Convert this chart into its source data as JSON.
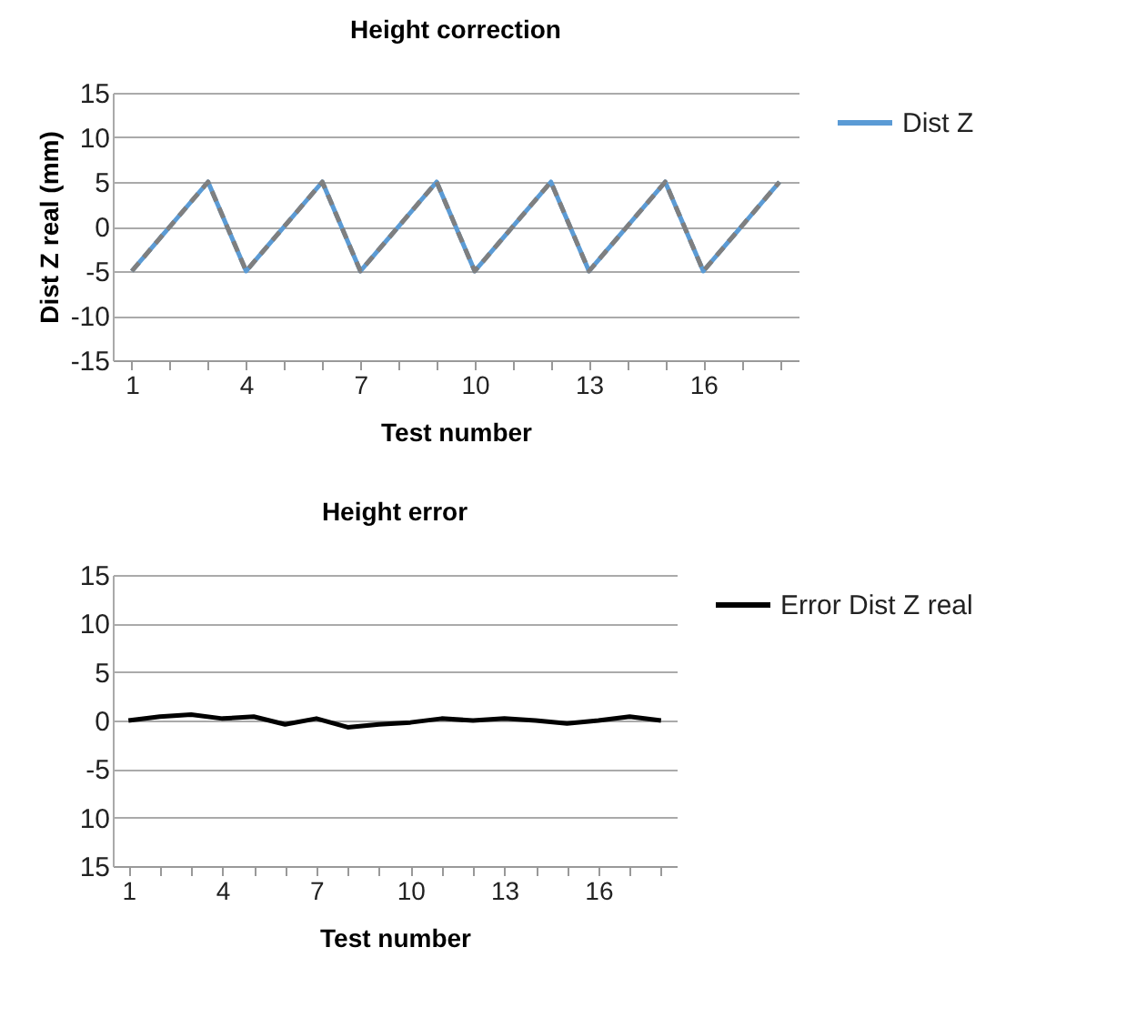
{
  "chart_data": [
    {
      "type": "line",
      "title": "Height correction",
      "xlabel": "Test number",
      "ylabel": "Dist Z real (mm)",
      "categories": [
        "1",
        null,
        null,
        "4",
        null,
        null,
        "7",
        null,
        null,
        "10",
        null,
        null,
        "13",
        null,
        null,
        "16",
        null,
        null
      ],
      "series": [
        {
          "name": "Dist Z",
          "color": "#5b9bd5",
          "values": [
            -5,
            0,
            5,
            -5,
            0,
            5,
            -5,
            0,
            5,
            -5,
            0,
            5,
            -5,
            0,
            5,
            -5,
            0,
            5
          ]
        },
        {
          "color": "#7f7f7f",
          "line_style": "dashed",
          "values": [
            -5,
            0,
            5,
            -5,
            0,
            5,
            -5,
            0,
            5,
            -5,
            0,
            5,
            -5,
            0,
            5,
            -5,
            0,
            5
          ]
        }
      ],
      "ylim": [
        -15,
        15
      ],
      "yticks": [
        -15,
        -10,
        -5,
        0,
        5,
        10,
        15
      ],
      "grid": "y",
      "legend": "right"
    },
    {
      "type": "line",
      "title": "Height error",
      "xlabel": "Test number",
      "categories": [
        "1",
        null,
        null,
        "4",
        null,
        null,
        "7",
        null,
        null,
        "10",
        null,
        null,
        "13",
        null,
        null,
        "16",
        null,
        null
      ],
      "series": [
        {
          "name": "Error Dist Z real",
          "color": "#000000",
          "values": [
            0,
            0.4,
            0.6,
            0.2,
            0.4,
            -0.4,
            0.2,
            -0.7,
            -0.4,
            -0.2,
            0.2,
            0,
            0.2,
            0,
            -0.3,
            0,
            0.4,
            0
          ]
        }
      ],
      "ylim": [
        -15,
        15
      ],
      "yticks": [
        {
          "value": -15,
          "label": "15"
        },
        {
          "value": -10,
          "label": "10"
        },
        -5,
        0,
        5,
        10,
        15
      ],
      "grid": "y",
      "legend": "right"
    }
  ]
}
